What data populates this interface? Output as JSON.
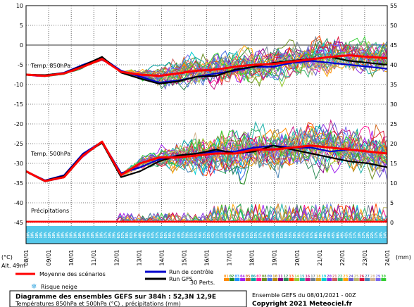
{
  "chart_data": {
    "type": "line",
    "title": "Diagramme des ensembles GEFS sur 384h : 52,3N 12,9E",
    "subtitle": "Températures 850hPa et 500hPa (°C) , précipitations (mm)",
    "source": "Ensemble GEFS du 08/01/2021 - 00Z",
    "copyright": "Copyright 2021 Meteociel.fr",
    "altitude_label": "Alt. 49m",
    "y_left_unit": "(°C)",
    "y_right_unit": "(mm)",
    "y_left_ticks": [
      "10",
      "5",
      "0",
      "-5",
      "-10",
      "-15",
      "-20",
      "-25",
      "-30",
      "-35",
      "-40",
      "-45"
    ],
    "y_right_ticks": [
      "55",
      "50",
      "45",
      "40",
      "35",
      "30",
      "25",
      "20",
      "15",
      "10",
      "5",
      "0"
    ],
    "ylim": [
      -45,
      10
    ],
    "x_dates": [
      "08/01",
      "09/01",
      "10/01",
      "11/01",
      "12/01",
      "13/01",
      "14/01",
      "15/01",
      "16/01",
      "17/01",
      "18/01",
      "19/01",
      "20/01",
      "21/01",
      "22/01",
      "23/01",
      "24/01"
    ],
    "panel_labels": {
      "t850": "Temp. 850hPa",
      "t500": "Temp. 500hPa",
      "precip": "Précipitations"
    },
    "colors": {
      "mean": "#ff0000",
      "control": "#0000cc",
      "gfs": "#000000",
      "snow_strip": "#55c8ea",
      "freezing": "#999999"
    },
    "member_colors": [
      "#ff8c00",
      "#228b22",
      "#1e90ff",
      "#a020f0",
      "#d2691e",
      "#00a0a0",
      "#ff1493",
      "#6b8e23",
      "#4169e1",
      "#b8860b",
      "#8b008b",
      "#2e8b57",
      "#ff4500",
      "#9acd32",
      "#20b2aa",
      "#c71585",
      "#708090",
      "#daa520",
      "#00ced1",
      "#8a2be2",
      "#cd5c5c",
      "#3cb371",
      "#ffa500",
      "#6a5acd",
      "#bdb76b",
      "#dc143c",
      "#4682b4",
      "#d2b48c",
      "#7b68ee",
      "#32cd32"
    ],
    "series": [
      {
        "name": "Moyenne des scénarios",
        "t850": [
          -7.5,
          -7.8,
          -7.2,
          -5.5,
          -3.5,
          -6.8,
          -7.5,
          -7.8,
          -7.2,
          -6.5,
          -6.2,
          -5.5,
          -5.0,
          -4.8,
          -4.2,
          -3.6,
          -3.0,
          -2.6,
          -3.0,
          -3.3
        ],
        "t500": [
          -32,
          -34.5,
          -33.5,
          -28,
          -24.5,
          -33,
          -30,
          -28.5,
          -28.5,
          -28,
          -27.5,
          -27.5,
          -26.5,
          -26.5,
          -26,
          -25.5,
          -26,
          -26.5,
          -27,
          -27.5
        ]
      },
      {
        "name": "Run de contrôle",
        "t850": [
          -7.5,
          -7.7,
          -7.0,
          -5.0,
          -3.2,
          -6.5,
          -8.0,
          -9.5,
          -9.0,
          -8.0,
          -7.2,
          -6.5,
          -5.5,
          -5.5,
          -4.5,
          -4.0,
          -4.5,
          -5.0,
          -5.5,
          -6.0
        ],
        "t500": [
          -32,
          -34.3,
          -33,
          -27.5,
          -24.5,
          -32.5,
          -31,
          -29,
          -28,
          -27.5,
          -27,
          -27,
          -26,
          -25.5,
          -26,
          -26,
          -27,
          -26.5,
          -27,
          -27.5
        ]
      },
      {
        "name": "Run GFS",
        "t850": [
          -7.5,
          -7.6,
          -7.1,
          -5.2,
          -3.0,
          -7.0,
          -8.5,
          -9.8,
          -9.2,
          -8.0,
          -7.8,
          -6.2,
          -5.5,
          -4.5,
          -4.0,
          -3.5,
          -3.0,
          -4.0,
          -4.5,
          -5.0
        ],
        "t500": [
          -32,
          -34.4,
          -33.2,
          -27.8,
          -24.8,
          -33.5,
          -32,
          -29.5,
          -28,
          -27.5,
          -26.5,
          -27.5,
          -27,
          -25.5,
          -26.5,
          -27.5,
          -28.5,
          -29.5,
          -30,
          -31
        ]
      }
    ],
    "snow_risk_percent": [
      "10%",
      "10%",
      "10%",
      "10%",
      "10%",
      "10%",
      "10%",
      "10%",
      "10%",
      "10%",
      "10%",
      "10%",
      "10%",
      "10%",
      "10%",
      "10%",
      "10%",
      "10%",
      "17%",
      "19%",
      "39%",
      "62%",
      "57%",
      "58%",
      "81%",
      "70%",
      "48%",
      "46%",
      "41%",
      "53%",
      "57%",
      "61%",
      "65%",
      "56%",
      "51%",
      "48%",
      "53%",
      "59%",
      "55%",
      "51%",
      "56%",
      "53%",
      "55%",
      "43%",
      "37%",
      "33%",
      "44%",
      "43%",
      "40%",
      "45%",
      "50%",
      "52%",
      "61%",
      "55%",
      "57%",
      "36%",
      "49%",
      "44%",
      "39%",
      "53%",
      "58%",
      "55%",
      "58%",
      "56%",
      "47%",
      "45%",
      "57%",
      "66%",
      "58%",
      "46%",
      "49%",
      "45%",
      "66%",
      "49%",
      "41%",
      "23%",
      "17%",
      "19%",
      "17%",
      "20%",
      "22%",
      "17%",
      "20%",
      "14%"
    ],
    "legend": {
      "mean": "Moyenne des scénarios",
      "control": "Run de contrôle",
      "gfs": "Run GFS",
      "perts": "30 Perts.",
      "snow": "Risque neige",
      "pert_numbers": [
        "01",
        "02",
        "03",
        "04",
        "05",
        "06",
        "07",
        "08",
        "09",
        "10",
        "11",
        "12",
        "13",
        "14",
        "15",
        "16",
        "17",
        "18",
        "19",
        "20",
        "21",
        "22",
        "23",
        "24",
        "25",
        "26",
        "27",
        "28",
        "29",
        "30"
      ]
    }
  }
}
